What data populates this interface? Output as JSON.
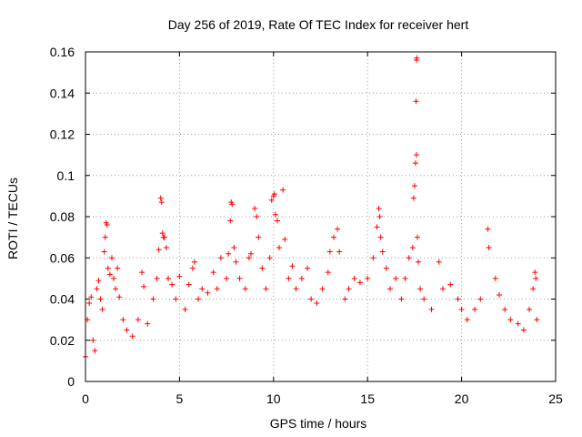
{
  "chart_data": {
    "type": "scatter",
    "title": "Day 256 of 2019, Rate Of TEC Index for receiver hert",
    "xlabel": "GPS time / hours",
    "ylabel": "ROTI / TECUs",
    "xlim": [
      0,
      25
    ],
    "ylim": [
      0,
      0.16
    ],
    "xticks": [
      0,
      5,
      10,
      15,
      20,
      25
    ],
    "xtick_labels": [
      "0",
      "5",
      "10",
      "15",
      "20",
      "25"
    ],
    "yticks": [
      0,
      0.02,
      0.04,
      0.06,
      0.08,
      0.1,
      0.12,
      0.14,
      0.16
    ],
    "ytick_labels": [
      "0",
      "0.02",
      "0.04",
      "0.06",
      "0.08",
      "0.1",
      "0.12",
      "0.14",
      "0.16"
    ],
    "grid": true,
    "marker": "+",
    "color": "#ff0000",
    "series": [
      {
        "points": [
          [
            0.0,
            0.012
          ],
          [
            0.1,
            0.03
          ],
          [
            0.2,
            0.038
          ],
          [
            0.3,
            0.041
          ],
          [
            0.4,
            0.02
          ],
          [
            0.5,
            0.015
          ],
          [
            0.6,
            0.045
          ],
          [
            0.7,
            0.049
          ],
          [
            0.8,
            0.04
          ],
          [
            0.9,
            0.035
          ],
          [
            1.0,
            0.063
          ],
          [
            1.05,
            0.07
          ],
          [
            1.1,
            0.077
          ],
          [
            1.15,
            0.076
          ],
          [
            1.2,
            0.055
          ],
          [
            1.3,
            0.052
          ],
          [
            1.4,
            0.06
          ],
          [
            1.5,
            0.05
          ],
          [
            1.6,
            0.045
          ],
          [
            1.7,
            0.055
          ],
          [
            1.8,
            0.041
          ],
          [
            2.0,
            0.03
          ],
          [
            2.2,
            0.025
          ],
          [
            2.5,
            0.022
          ],
          [
            2.8,
            0.03
          ],
          [
            3.0,
            0.053
          ],
          [
            3.1,
            0.046
          ],
          [
            3.3,
            0.028
          ],
          [
            3.6,
            0.04
          ],
          [
            3.8,
            0.05
          ],
          [
            3.9,
            0.064
          ],
          [
            4.0,
            0.089
          ],
          [
            4.05,
            0.087
          ],
          [
            4.1,
            0.072
          ],
          [
            4.15,
            0.07
          ],
          [
            4.2,
            0.07
          ],
          [
            4.3,
            0.065
          ],
          [
            4.4,
            0.05
          ],
          [
            4.6,
            0.047
          ],
          [
            4.8,
            0.04
          ],
          [
            5.0,
            0.051
          ],
          [
            5.3,
            0.035
          ],
          [
            5.5,
            0.047
          ],
          [
            5.7,
            0.055
          ],
          [
            5.8,
            0.058
          ],
          [
            6.0,
            0.04
          ],
          [
            6.2,
            0.045
          ],
          [
            6.5,
            0.043
          ],
          [
            6.8,
            0.053
          ],
          [
            7.0,
            0.045
          ],
          [
            7.2,
            0.06
          ],
          [
            7.5,
            0.05
          ],
          [
            7.6,
            0.062
          ],
          [
            7.7,
            0.078
          ],
          [
            7.75,
            0.087
          ],
          [
            7.8,
            0.086
          ],
          [
            7.9,
            0.065
          ],
          [
            8.0,
            0.058
          ],
          [
            8.2,
            0.05
          ],
          [
            8.5,
            0.045
          ],
          [
            8.7,
            0.06
          ],
          [
            8.8,
            0.062
          ],
          [
            9.0,
            0.084
          ],
          [
            9.1,
            0.08
          ],
          [
            9.2,
            0.07
          ],
          [
            9.4,
            0.055
          ],
          [
            9.6,
            0.045
          ],
          [
            9.8,
            0.06
          ],
          [
            9.9,
            0.088
          ],
          [
            10.0,
            0.09
          ],
          [
            10.05,
            0.091
          ],
          [
            10.1,
            0.081
          ],
          [
            10.2,
            0.078
          ],
          [
            10.3,
            0.065
          ],
          [
            10.5,
            0.093
          ],
          [
            10.6,
            0.069
          ],
          [
            10.8,
            0.05
          ],
          [
            11.0,
            0.056
          ],
          [
            11.2,
            0.045
          ],
          [
            11.5,
            0.05
          ],
          [
            11.8,
            0.055
          ],
          [
            12.0,
            0.04
          ],
          [
            12.3,
            0.038
          ],
          [
            12.6,
            0.045
          ],
          [
            12.9,
            0.053
          ],
          [
            13.0,
            0.063
          ],
          [
            13.2,
            0.07
          ],
          [
            13.4,
            0.074
          ],
          [
            13.5,
            0.063
          ],
          [
            13.8,
            0.04
          ],
          [
            14.0,
            0.045
          ],
          [
            14.3,
            0.05
          ],
          [
            14.6,
            0.048
          ],
          [
            15.0,
            0.05
          ],
          [
            15.3,
            0.06
          ],
          [
            15.5,
            0.075
          ],
          [
            15.6,
            0.084
          ],
          [
            15.65,
            0.08
          ],
          [
            15.7,
            0.07
          ],
          [
            15.8,
            0.063
          ],
          [
            16.0,
            0.055
          ],
          [
            16.2,
            0.045
          ],
          [
            16.5,
            0.05
          ],
          [
            16.8,
            0.04
          ],
          [
            17.0,
            0.05
          ],
          [
            17.2,
            0.06
          ],
          [
            17.4,
            0.065
          ],
          [
            17.45,
            0.089
          ],
          [
            17.5,
            0.095
          ],
          [
            17.55,
            0.106
          ],
          [
            17.6,
            0.11
          ],
          [
            17.58,
            0.136
          ],
          [
            17.6,
            0.156
          ],
          [
            17.62,
            0.157
          ],
          [
            17.65,
            0.07
          ],
          [
            17.7,
            0.058
          ],
          [
            17.8,
            0.045
          ],
          [
            18.0,
            0.04
          ],
          [
            18.4,
            0.035
          ],
          [
            18.8,
            0.058
          ],
          [
            19.0,
            0.045
          ],
          [
            19.4,
            0.047
          ],
          [
            19.8,
            0.04
          ],
          [
            20.0,
            0.035
          ],
          [
            20.3,
            0.03
          ],
          [
            20.7,
            0.035
          ],
          [
            21.0,
            0.04
          ],
          [
            21.4,
            0.074
          ],
          [
            21.45,
            0.065
          ],
          [
            21.8,
            0.05
          ],
          [
            22.0,
            0.042
          ],
          [
            22.3,
            0.035
          ],
          [
            22.6,
            0.03
          ],
          [
            23.0,
            0.028
          ],
          [
            23.3,
            0.025
          ],
          [
            23.6,
            0.035
          ],
          [
            23.8,
            0.045
          ],
          [
            23.9,
            0.053
          ],
          [
            23.95,
            0.05
          ],
          [
            24.0,
            0.03
          ]
        ]
      }
    ]
  }
}
